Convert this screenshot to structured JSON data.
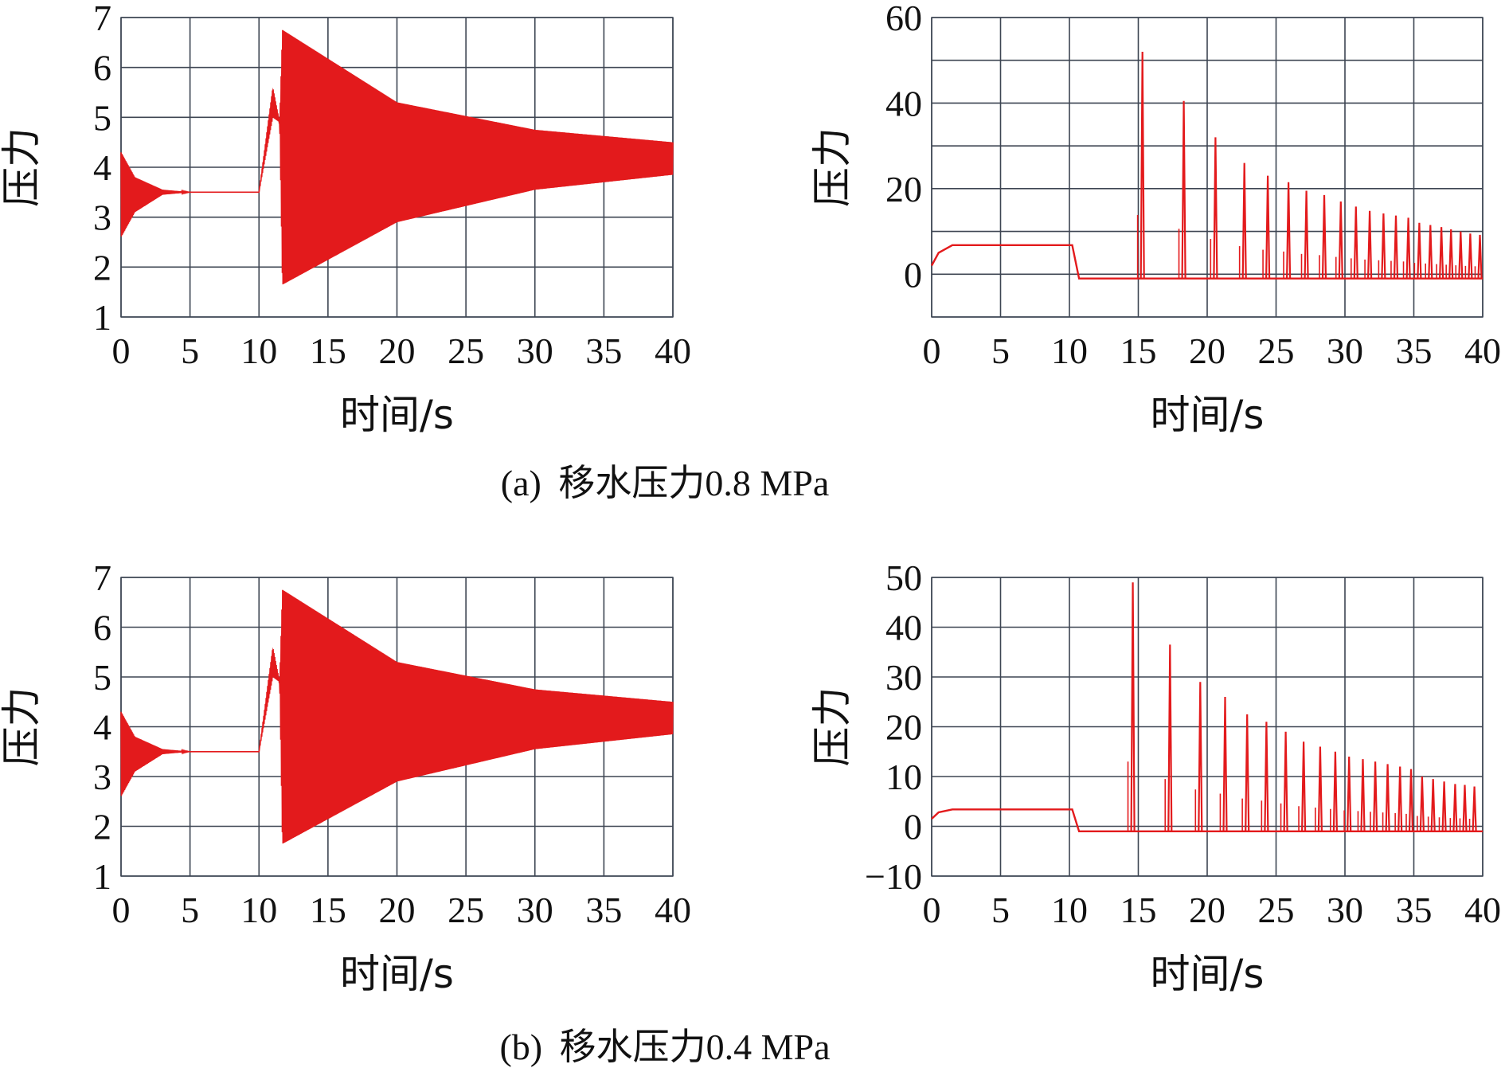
{
  "colors": {
    "trace": "#e31a1c",
    "grid": "#3d4552",
    "frame": "#9aa0a8",
    "text": "#111111"
  },
  "captions": [
    {
      "label": "(a)",
      "text": "移水压力0.8 MPa"
    },
    {
      "label": "(b)",
      "text": "移水压力0.4 MPa"
    }
  ],
  "chart_data": [
    {
      "type": "line",
      "panel": "a-left",
      "xlabel": "时间/s",
      "ylabel": "压力",
      "xlim": [
        0,
        40
      ],
      "ylim": [
        1,
        7
      ],
      "xticks": [
        0,
        5,
        10,
        15,
        20,
        25,
        30,
        35,
        40
      ],
      "yticks": [
        1,
        2,
        3,
        4,
        5,
        6,
        7
      ],
      "grid": true,
      "envelope": {
        "description_points": [
          {
            "x": 0,
            "upper": 4.3,
            "lower": 2.6
          },
          {
            "x": 1,
            "upper": 3.8,
            "lower": 3.1
          },
          {
            "x": 3,
            "upper": 3.55,
            "lower": 3.45
          },
          {
            "x": 5,
            "upper": 3.5,
            "lower": 3.5
          },
          {
            "x": 10,
            "upper": 3.5,
            "lower": 3.5
          },
          {
            "x": 11,
            "upper": 5.6,
            "lower": 5.0
          },
          {
            "x": 11.5,
            "upper": 4.9,
            "lower": 4.9
          },
          {
            "x": 11.7,
            "upper": 6.75,
            "lower": 1.65
          },
          {
            "x": 20,
            "upper": 5.3,
            "lower": 2.9
          },
          {
            "x": 30,
            "upper": 4.75,
            "lower": 3.55
          },
          {
            "x": 40,
            "upper": 4.5,
            "lower": 3.85
          }
        ]
      }
    },
    {
      "type": "line",
      "panel": "a-right",
      "xlabel": "时间/s",
      "ylabel": "压力",
      "xlim": [
        0,
        40
      ],
      "ylim": [
        -10,
        60
      ],
      "xticks": [
        0,
        5,
        10,
        15,
        20,
        25,
        30,
        35,
        40
      ],
      "yticks": [
        0,
        20,
        40,
        60
      ],
      "grid": true,
      "baseline": [
        {
          "x": 0,
          "y": 2
        },
        {
          "x": 0.5,
          "y": 5
        },
        {
          "x": 1.5,
          "y": 6.8
        },
        {
          "x": 10.2,
          "y": 6.8
        },
        {
          "x": 10.7,
          "y": -1
        },
        {
          "x": 40,
          "y": -1
        }
      ],
      "peaks": [
        {
          "x": 15.3,
          "y": 52
        },
        {
          "x": 18.3,
          "y": 40.5
        },
        {
          "x": 20.6,
          "y": 32
        },
        {
          "x": 22.7,
          "y": 26
        },
        {
          "x": 24.4,
          "y": 23
        },
        {
          "x": 25.9,
          "y": 21.5
        },
        {
          "x": 27.2,
          "y": 19.5
        },
        {
          "x": 28.5,
          "y": 18.5
        },
        {
          "x": 29.7,
          "y": 17
        },
        {
          "x": 30.8,
          "y": 15.8
        },
        {
          "x": 31.8,
          "y": 14.8
        },
        {
          "x": 32.8,
          "y": 14.2
        },
        {
          "x": 33.7,
          "y": 13.7
        },
        {
          "x": 34.6,
          "y": 13.2
        },
        {
          "x": 35.4,
          "y": 12
        },
        {
          "x": 36.2,
          "y": 11.5
        },
        {
          "x": 37.0,
          "y": 11
        },
        {
          "x": 37.7,
          "y": 10.5
        },
        {
          "x": 38.4,
          "y": 10
        },
        {
          "x": 39.1,
          "y": 9.5
        },
        {
          "x": 39.8,
          "y": 9.2
        }
      ]
    },
    {
      "type": "line",
      "panel": "b-left",
      "xlabel": "时间/s",
      "ylabel": "压力",
      "xlim": [
        0,
        40
      ],
      "ylim": [
        1,
        7
      ],
      "xticks": [
        0,
        5,
        10,
        15,
        20,
        25,
        30,
        35,
        40
      ],
      "yticks": [
        1,
        2,
        3,
        4,
        5,
        6,
        7
      ],
      "grid": true,
      "envelope": {
        "description_points": [
          {
            "x": 0,
            "upper": 4.3,
            "lower": 2.6
          },
          {
            "x": 1,
            "upper": 3.8,
            "lower": 3.1
          },
          {
            "x": 3,
            "upper": 3.55,
            "lower": 3.45
          },
          {
            "x": 5,
            "upper": 3.5,
            "lower": 3.5
          },
          {
            "x": 10,
            "upper": 3.5,
            "lower": 3.5
          },
          {
            "x": 11,
            "upper": 5.6,
            "lower": 5.0
          },
          {
            "x": 11.5,
            "upper": 4.9,
            "lower": 4.9
          },
          {
            "x": 11.7,
            "upper": 6.75,
            "lower": 1.65
          },
          {
            "x": 20,
            "upper": 5.3,
            "lower": 2.9
          },
          {
            "x": 30,
            "upper": 4.75,
            "lower": 3.55
          },
          {
            "x": 40,
            "upper": 4.5,
            "lower": 3.85
          }
        ]
      }
    },
    {
      "type": "line",
      "panel": "b-right",
      "xlabel": "时间/s",
      "ylabel": "压力",
      "xlim": [
        0,
        40
      ],
      "ylim": [
        -10,
        50
      ],
      "xticks": [
        0,
        5,
        10,
        15,
        20,
        25,
        30,
        35,
        40
      ],
      "yticks": [
        -10,
        0,
        10,
        20,
        30,
        40,
        50
      ],
      "ytick_labels": [
        "−10",
        "0",
        "10",
        "20",
        "30",
        "40",
        "50"
      ],
      "grid": true,
      "baseline": [
        {
          "x": 0,
          "y": 1.5
        },
        {
          "x": 0.5,
          "y": 2.8
        },
        {
          "x": 1.5,
          "y": 3.4
        },
        {
          "x": 10.2,
          "y": 3.4
        },
        {
          "x": 10.7,
          "y": -1
        },
        {
          "x": 40,
          "y": -1
        }
      ],
      "peaks": [
        {
          "x": 14.6,
          "y": 49
        },
        {
          "x": 17.3,
          "y": 36.5
        },
        {
          "x": 19.5,
          "y": 29
        },
        {
          "x": 21.3,
          "y": 26
        },
        {
          "x": 22.9,
          "y": 22.5
        },
        {
          "x": 24.3,
          "y": 21
        },
        {
          "x": 25.7,
          "y": 19
        },
        {
          "x": 27.0,
          "y": 17
        },
        {
          "x": 28.2,
          "y": 16
        },
        {
          "x": 29.3,
          "y": 15
        },
        {
          "x": 30.3,
          "y": 14
        },
        {
          "x": 31.3,
          "y": 13.5
        },
        {
          "x": 32.2,
          "y": 13
        },
        {
          "x": 33.1,
          "y": 12.5
        },
        {
          "x": 34.0,
          "y": 12
        },
        {
          "x": 34.8,
          "y": 11.5
        },
        {
          "x": 35.6,
          "y": 10
        },
        {
          "x": 36.4,
          "y": 9.5
        },
        {
          "x": 37.2,
          "y": 9
        },
        {
          "x": 38.0,
          "y": 8.5
        },
        {
          "x": 38.7,
          "y": 8.3
        },
        {
          "x": 39.4,
          "y": 8
        }
      ]
    }
  ]
}
